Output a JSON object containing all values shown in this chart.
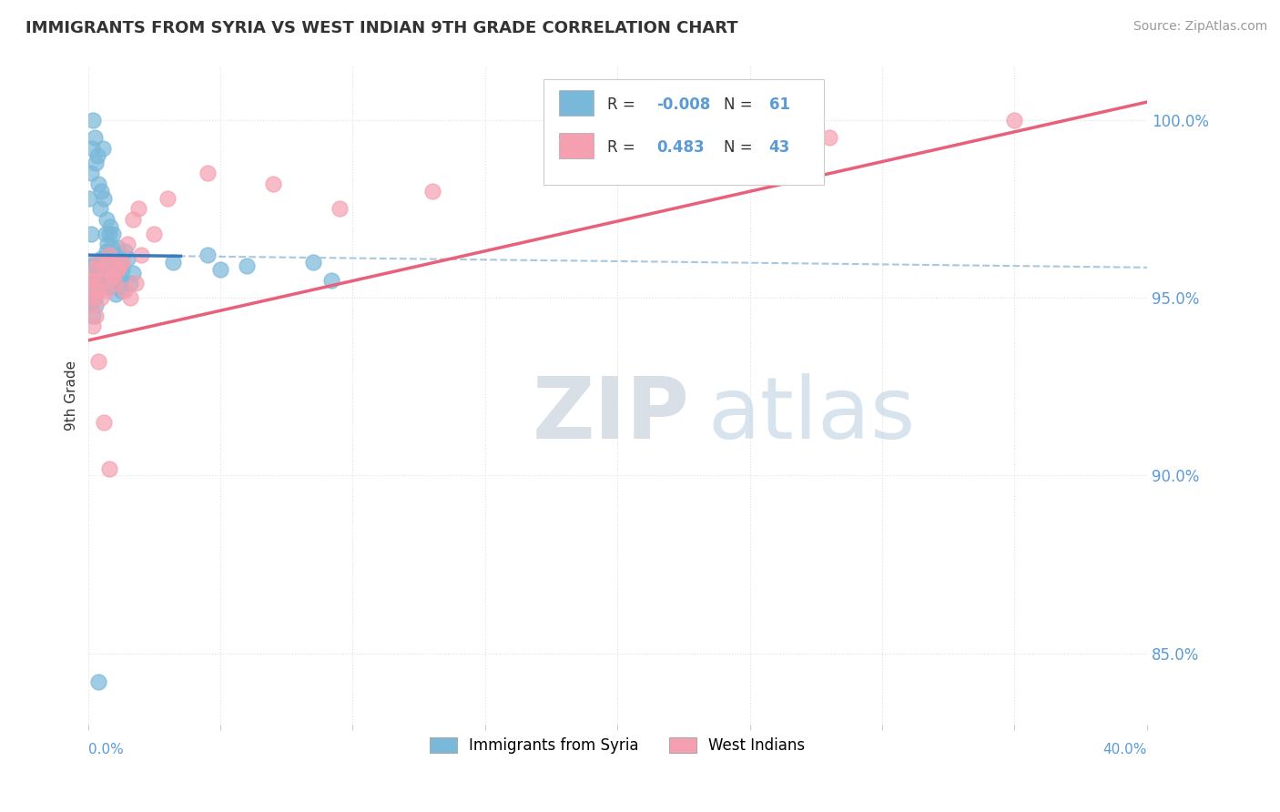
{
  "title": "IMMIGRANTS FROM SYRIA VS WEST INDIAN 9TH GRADE CORRELATION CHART",
  "source": "Source: ZipAtlas.com",
  "ylabel": "9th Grade",
  "xmin": 0.0,
  "xmax": 40.0,
  "ymin": 83.0,
  "ymax": 101.5,
  "legend_R1": "-0.008",
  "legend_N1": "61",
  "legend_R2": "0.483",
  "legend_N2": "43",
  "legend_label1": "Immigrants from Syria",
  "legend_label2": "West Indians",
  "blue_color": "#7ab8d9",
  "pink_color": "#f4a0b0",
  "blue_line_color": "#3a7abf",
  "pink_line_color": "#e8607a",
  "dashed_line_color": "#a8c8e0",
  "text_color_blue": "#5b9bd5",
  "text_color_dark": "#333333",
  "grid_color": "#e0e0e0",
  "ytick_positions": [
    85,
    90,
    95,
    100
  ],
  "ytick_labels": [
    "85.0%",
    "90.0%",
    "95.0%",
    "100.0%"
  ],
  "blue_line_x0": 0.0,
  "blue_line_x1": 40.0,
  "blue_line_y0": 96.2,
  "blue_line_y1": 95.85,
  "blue_solid_x1": 3.5,
  "pink_line_x0": 0.0,
  "pink_line_x1": 40.0,
  "pink_line_y0": 93.8,
  "pink_line_y1": 100.5,
  "syria_x": [
    0.05,
    0.1,
    0.15,
    0.2,
    0.25,
    0.3,
    0.35,
    0.4,
    0.45,
    0.5,
    0.55,
    0.6,
    0.65,
    0.7,
    0.75,
    0.8,
    0.85,
    0.9,
    0.95,
    1.0,
    1.05,
    1.1,
    1.15,
    1.2,
    1.25,
    1.3,
    1.4,
    1.5,
    1.6,
    1.7,
    0.1,
    0.2,
    0.3,
    0.4,
    0.5,
    0.6,
    0.7,
    0.8,
    0.15,
    0.25,
    0.35,
    0.45,
    0.55,
    0.65,
    0.75,
    0.85,
    0.95,
    1.05,
    1.15,
    1.25,
    3.2,
    4.5,
    5.0,
    6.0,
    8.5,
    9.2,
    0.2,
    0.3,
    0.1,
    0.25,
    0.4
  ],
  "syria_y": [
    97.8,
    98.5,
    99.2,
    100.0,
    99.5,
    98.8,
    99.0,
    98.2,
    97.5,
    98.0,
    99.2,
    97.8,
    96.8,
    97.2,
    96.5,
    96.8,
    97.0,
    96.4,
    96.8,
    96.2,
    95.8,
    96.4,
    95.5,
    96.0,
    95.2,
    95.8,
    96.3,
    96.1,
    95.4,
    95.7,
    96.8,
    95.9,
    95.5,
    95.8,
    96.1,
    95.6,
    96.3,
    95.4,
    96.0,
    95.2,
    95.4,
    95.6,
    95.8,
    96.0,
    95.3,
    95.5,
    95.7,
    95.1,
    95.3,
    95.5,
    96.0,
    96.2,
    95.8,
    95.9,
    96.0,
    95.5,
    94.5,
    94.8,
    94.9,
    95.0,
    84.2
  ],
  "westindian_x": [
    0.05,
    0.1,
    0.15,
    0.2,
    0.25,
    0.3,
    0.35,
    0.4,
    0.5,
    0.6,
    0.7,
    0.8,
    0.9,
    1.0,
    1.1,
    1.2,
    1.4,
    1.6,
    1.8,
    2.0,
    2.5,
    0.3,
    0.5,
    0.7,
    0.9,
    1.1,
    1.3,
    1.5,
    1.7,
    1.9,
    3.0,
    4.5,
    7.0,
    9.5,
    13.0,
    17.5,
    22.0,
    28.0,
    35.0,
    0.2,
    0.4,
    0.6,
    0.8
  ],
  "westindian_y": [
    95.5,
    95.2,
    94.8,
    95.0,
    95.5,
    95.8,
    96.0,
    95.2,
    95.5,
    95.8,
    96.0,
    96.2,
    95.6,
    95.4,
    95.8,
    96.0,
    95.2,
    95.0,
    95.4,
    96.2,
    96.8,
    94.5,
    95.0,
    95.2,
    95.6,
    95.8,
    96.0,
    96.5,
    97.2,
    97.5,
    97.8,
    98.5,
    98.2,
    97.5,
    98.0,
    98.5,
    99.2,
    99.5,
    100.0,
    94.2,
    93.2,
    91.5,
    90.2
  ]
}
